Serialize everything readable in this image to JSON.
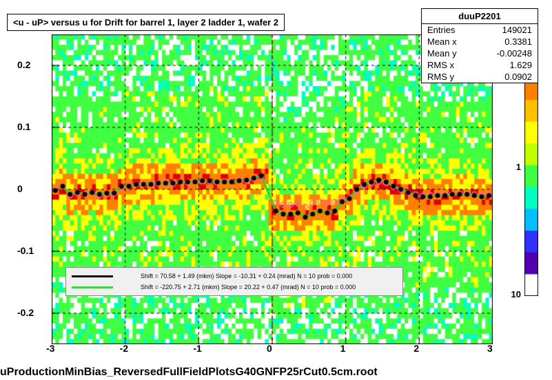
{
  "title": "<u - uP>      versus    u for Drift for barrel 1, layer 2 ladder 1, wafer 2",
  "stats": {
    "name": "duuP2201",
    "entries_label": "Entries",
    "entries": "149021",
    "meanx_label": "Mean x",
    "meanx": "0.3381",
    "meany_label": "Mean y",
    "meany": "-0.00248",
    "rmsx_label": "RMS x",
    "rmsx": "1.629",
    "rmsy_label": "RMS y",
    "rmsy": "0.0902"
  },
  "axes": {
    "xlim": [
      -3,
      3
    ],
    "ylim": [
      -0.25,
      0.25
    ],
    "xticks": [
      -3,
      -2,
      -1,
      0,
      1,
      2,
      3
    ],
    "yticks": [
      -0.2,
      -0.1,
      0,
      0.1,
      0.2
    ],
    "xtick_labels": [
      "-3",
      "-2",
      "-1",
      "0",
      "1",
      "2",
      "3"
    ],
    "ytick_labels": [
      "-0.2",
      "-0.1",
      "0",
      "0.1",
      "0.2"
    ]
  },
  "colorbar": {
    "values": [
      "10",
      "1",
      "10"
    ],
    "colors": [
      "#ffffff",
      "#5000b0",
      "#3030ff",
      "#00c0ff",
      "#00ffc0",
      "#40ff40",
      "#c0ff00",
      "#ffff00",
      "#ffc000",
      "#ff8000",
      "#ff4000",
      "#e00000"
    ]
  },
  "heatmap": {
    "nx": 120,
    "ny": 60,
    "green": "#40ff40",
    "yellow": "#ffff00",
    "orange": "#ff8000",
    "red": "#e00000",
    "cyan": "#00ffc0"
  },
  "fits": [
    {
      "color": "#000000",
      "text": "Shift =     70.58 +  1.49 (mkm)  Slope =    -10.31 + 0.24 (mrad)   N = 10 prob = 0.000"
    },
    {
      "color": "#40d040",
      "text": "Shift =   -220.75 +  2.71 (mkm)  Slope =     20.22 + 0.47 (mrad)   N = 10 prob = 0.000"
    }
  ],
  "series_profile": {
    "x": [
      -2.95,
      -2.85,
      -2.75,
      -2.65,
      -2.55,
      -2.45,
      -2.35,
      -2.25,
      -2.15,
      -2.05,
      -1.95,
      -1.85,
      -1.75,
      -1.65,
      -1.55,
      -1.45,
      -1.35,
      -1.25,
      -1.15,
      -1.05,
      -0.95,
      -0.85,
      -0.75,
      -0.65,
      -0.55,
      -0.45,
      -0.35,
      -0.25,
      -0.15,
      0.05,
      0.15,
      0.25,
      0.35,
      0.45,
      0.55,
      0.65,
      0.75,
      0.85,
      0.95,
      1.05,
      1.15,
      1.25,
      1.35,
      1.45,
      1.55,
      1.65,
      1.75,
      1.85,
      1.95,
      2.05,
      2.15,
      2.25,
      2.35,
      2.45,
      2.55,
      2.65,
      2.75,
      2.85,
      2.95
    ],
    "y_black": [
      -0.002,
      0.005,
      -0.008,
      -0.005,
      -0.008,
      -0.005,
      -0.008,
      -0.006,
      -0.006,
      0.005,
      0.005,
      0.008,
      0.008,
      0.008,
      0.01,
      0.01,
      0.01,
      0.012,
      0.012,
      0.012,
      0.014,
      0.014,
      0.012,
      0.012,
      0.012,
      0.014,
      0.015,
      0.018,
      0.022,
      -0.035,
      -0.04,
      -0.04,
      -0.038,
      -0.045,
      -0.04,
      -0.035,
      -0.038,
      -0.035,
      -0.02,
      -0.015,
      0.0,
      0.008,
      0.012,
      0.015,
      0.012,
      0.005,
      0.0,
      -0.005,
      -0.01,
      -0.012,
      -0.012,
      -0.01,
      -0.01,
      -0.008,
      -0.008,
      -0.008,
      -0.01,
      -0.012,
      -0.01
    ],
    "y_pink": [
      -0.001,
      0.005,
      -0.01,
      -0.006,
      -0.008,
      -0.005,
      -0.01,
      -0.008,
      -0.007,
      0.003,
      0.005,
      0.008,
      0.008,
      0.008,
      0.01,
      0.012,
      0.009,
      0.013,
      0.011,
      0.012,
      0.014,
      0.013,
      0.011,
      0.013,
      0.012,
      0.015,
      0.014,
      0.017,
      0.02,
      -0.022,
      -0.025,
      -0.025,
      -0.023,
      -0.028,
      -0.022,
      -0.02,
      -0.022,
      -0.02,
      -0.018,
      -0.015,
      -0.003,
      0.005,
      0.01,
      0.012,
      0.01,
      0.004,
      -0.001,
      -0.005,
      -0.008,
      -0.01,
      -0.009,
      -0.008,
      -0.008,
      -0.008,
      -0.007,
      -0.007,
      -0.008,
      -0.01,
      -0.009
    ]
  },
  "bottom_text": "uProductionMinBias_ReversedFullFieldPlotsG40GNFP25rCut0.5cm.root"
}
